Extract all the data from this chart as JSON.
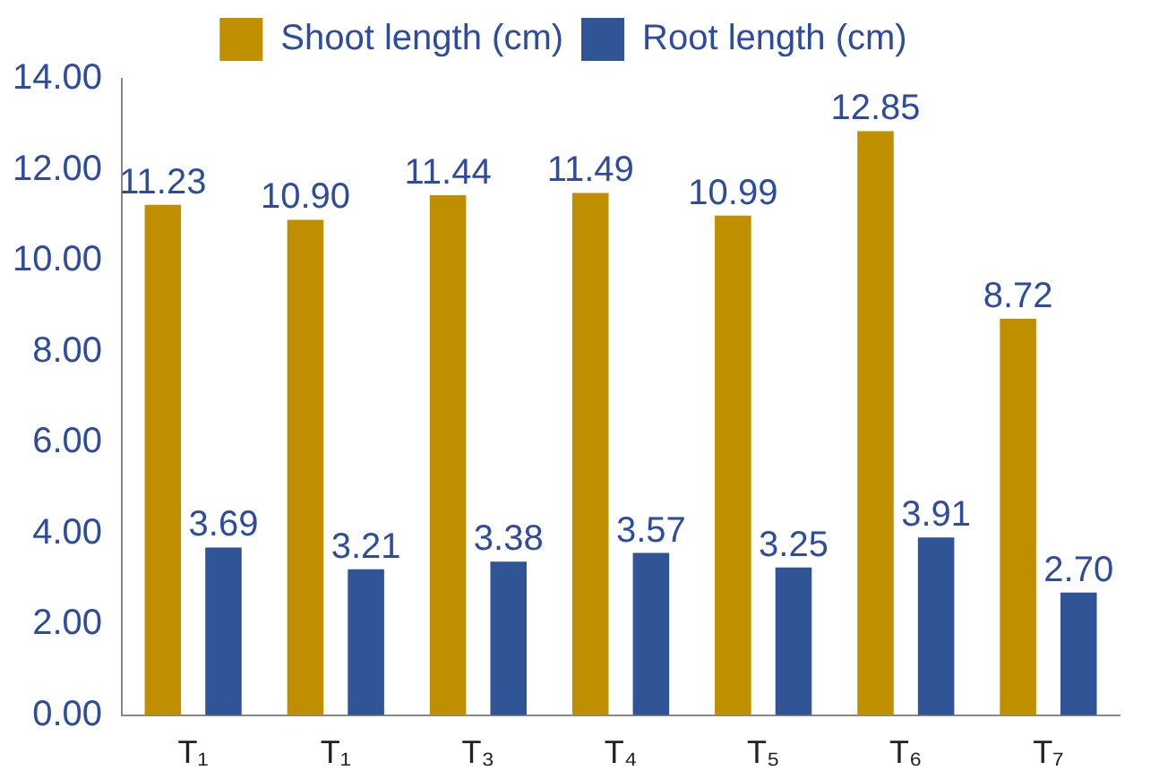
{
  "chart_data": {
    "type": "bar",
    "categories": [
      "T₁",
      "T₁",
      "T₃",
      "T₄",
      "T₅",
      "T₆",
      "T₇"
    ],
    "series": [
      {
        "name": "Shoot length (cm)",
        "color": "#bf8f00",
        "values": [
          11.23,
          10.9,
          11.44,
          11.49,
          10.99,
          12.85,
          8.72
        ],
        "value_labels": [
          "11.23",
          "10.90",
          "11.44",
          "11.49",
          "10.99",
          "12.85",
          "8.72"
        ]
      },
      {
        "name": "Root length (cm)",
        "color": "#2f5597",
        "values": [
          3.69,
          3.21,
          3.38,
          3.57,
          3.25,
          3.91,
          2.7
        ],
        "value_labels": [
          "3.69",
          "3.21",
          "3.38",
          "3.57",
          "3.25",
          "3.91",
          "2.70"
        ]
      }
    ],
    "ylim": [
      0,
      14
    ],
    "yticks": [
      {
        "value": 0,
        "label": "0.00"
      },
      {
        "value": 2,
        "label": "2.00"
      },
      {
        "value": 4,
        "label": "4.00"
      },
      {
        "value": 6,
        "label": "6.00"
      },
      {
        "value": 8,
        "label": "8.00"
      },
      {
        "value": 10,
        "label": "10.00"
      },
      {
        "value": 12,
        "label": "12.00"
      },
      {
        "value": 14,
        "label": "14.00"
      }
    ],
    "grid": false,
    "legend": "top"
  }
}
